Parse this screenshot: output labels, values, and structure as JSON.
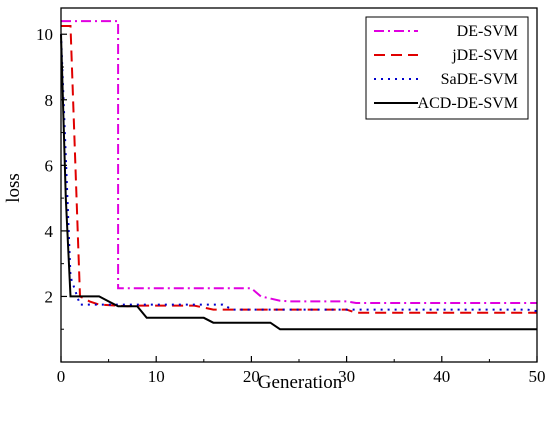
{
  "chart_data": {
    "type": "line",
    "title": "",
    "xlabel": "Generation",
    "ylabel": "loss",
    "xlim": [
      0,
      50
    ],
    "ylim": [
      0,
      10.8
    ],
    "xticks": [
      0,
      10,
      20,
      30,
      40,
      50
    ],
    "yticks": [
      2,
      4,
      6,
      8,
      10
    ],
    "grid": false,
    "legend_position": "top-right",
    "series": [
      {
        "name": "DE-SVM",
        "color": "#e000e0",
        "dash": "dashdot",
        "x": [
          0,
          5,
          6,
          6,
          20,
          21,
          23,
          24,
          30,
          31,
          50
        ],
        "y": [
          10.4,
          10.4,
          10.4,
          2.25,
          2.25,
          2.0,
          1.87,
          1.85,
          1.85,
          1.8,
          1.8
        ]
      },
      {
        "name": "jDE-SVM",
        "color": "#e00000",
        "dash": "dashed",
        "x": [
          0,
          1,
          1,
          2,
          3,
          4,
          7,
          8,
          9,
          10,
          14,
          16,
          17,
          30,
          31,
          50
        ],
        "y": [
          10.25,
          10.25,
          10.25,
          2.0,
          1.85,
          1.75,
          1.7,
          1.72,
          1.72,
          1.72,
          1.72,
          1.6,
          1.6,
          1.6,
          1.5,
          1.5
        ]
      },
      {
        "name": "SaDE-SVM",
        "color": "#0000cc",
        "dash": "dotted",
        "x": [
          0,
          1,
          2,
          8,
          9,
          17,
          18,
          49,
          50
        ],
        "y": [
          10.0,
          2.6,
          1.75,
          1.75,
          1.75,
          1.75,
          1.6,
          1.6,
          1.55
        ]
      },
      {
        "name": "ACD-DE-SVM",
        "color": "#000000",
        "dash": "solid",
        "x": [
          0,
          0.5,
          1,
          4,
          5,
          6,
          8,
          9,
          15,
          16,
          22,
          23,
          50
        ],
        "y": [
          10.0,
          5.0,
          2.0,
          2.0,
          1.85,
          1.7,
          1.7,
          1.35,
          1.35,
          1.2,
          1.2,
          1.0,
          1.0
        ]
      }
    ]
  }
}
